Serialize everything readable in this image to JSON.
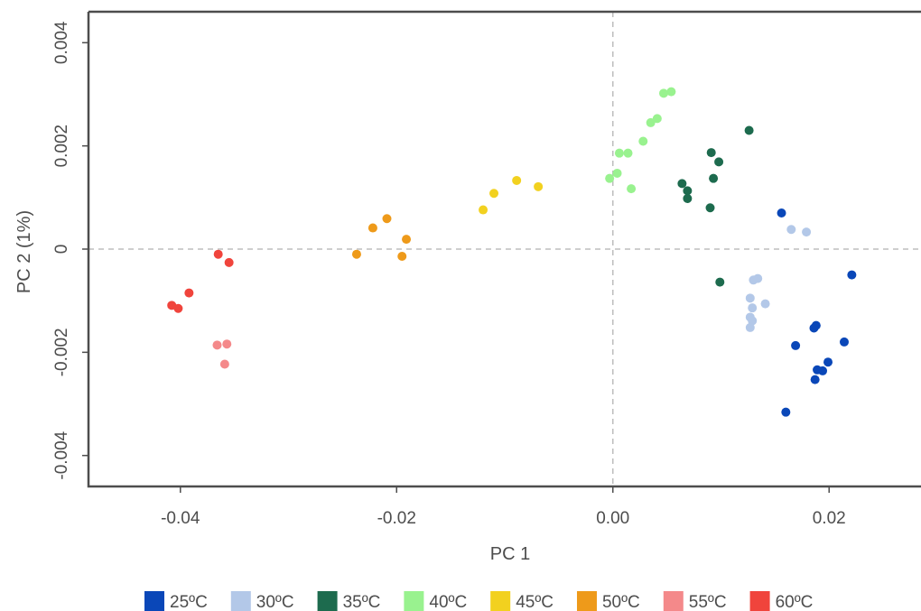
{
  "chart_data": {
    "type": "scatter",
    "xlabel": "PC 1",
    "ylabel": "PC 2 (1%)",
    "xlim": [
      -0.0485,
      0.0285
    ],
    "ylim": [
      -0.0046,
      0.0046
    ],
    "x_ticks": [
      -0.04,
      -0.02,
      0.0,
      0.02
    ],
    "x_tick_labels": [
      "-0.04",
      "-0.02",
      "0.00",
      "0.02"
    ],
    "y_ticks": [
      -0.004,
      -0.002,
      0,
      0.002,
      0.004
    ],
    "y_tick_labels": [
      "-0.004",
      "-0.002",
      "0",
      "0.002",
      "0.004"
    ],
    "reference_lines": {
      "x": 0,
      "y": 0
    },
    "grid": false,
    "legend_position": "bottom",
    "series": [
      {
        "name": "25ºC",
        "color": "#0a47b8",
        "points": [
          [
            0.0156,
            0.0007
          ],
          [
            0.0221,
            -0.0005
          ],
          [
            0.0186,
            -0.00153
          ],
          [
            0.0188,
            -0.00148
          ],
          [
            0.0169,
            -0.00187
          ],
          [
            0.0214,
            -0.0018
          ],
          [
            0.0199,
            -0.00219
          ],
          [
            0.0194,
            -0.00236
          ],
          [
            0.0189,
            -0.00234
          ],
          [
            0.0187,
            -0.00253
          ],
          [
            0.016,
            -0.00316
          ]
        ]
      },
      {
        "name": "30ºC",
        "color": "#b3c8e8",
        "points": [
          [
            0.0165,
            0.00038
          ],
          [
            0.0179,
            0.00033
          ],
          [
            0.0134,
            -0.00057
          ],
          [
            0.013,
            -0.0006
          ],
          [
            0.0127,
            -0.00095
          ],
          [
            0.0141,
            -0.00106
          ],
          [
            0.0129,
            -0.00114
          ],
          [
            0.0127,
            -0.00132
          ],
          [
            0.0129,
            -0.00139
          ],
          [
            0.0127,
            -0.00152
          ]
        ]
      },
      {
        "name": "35ºC",
        "color": "#1d6b4e",
        "points": [
          [
            0.0126,
            0.0023
          ],
          [
            0.0091,
            0.00187
          ],
          [
            0.0098,
            0.00169
          ],
          [
            0.0093,
            0.00137
          ],
          [
            0.0064,
            0.00127
          ],
          [
            0.0069,
            0.00113
          ],
          [
            0.0069,
            0.00098
          ],
          [
            0.009,
            0.0008
          ],
          [
            0.0099,
            -0.00064
          ]
        ]
      },
      {
        "name": "40ºC",
        "color": "#99f28f",
        "points": [
          [
            0.0054,
            0.00305
          ],
          [
            0.0047,
            0.00302
          ],
          [
            0.0041,
            0.00253
          ],
          [
            0.0035,
            0.00245
          ],
          [
            0.0028,
            0.00209
          ],
          [
            0.0006,
            0.00186
          ],
          [
            0.0014,
            0.00186
          ],
          [
            0.0004,
            0.00147
          ],
          [
            -0.0003,
            0.00137
          ],
          [
            0.0017,
            0.00117
          ]
        ]
      },
      {
        "name": "45ºC",
        "color": "#f2d11f",
        "points": [
          [
            -0.0089,
            0.00133
          ],
          [
            -0.0069,
            0.00121
          ],
          [
            -0.011,
            0.00108
          ],
          [
            -0.012,
            0.00076
          ]
        ]
      },
      {
        "name": "50ºC",
        "color": "#ee9a1a",
        "points": [
          [
            -0.0209,
            0.00059
          ],
          [
            -0.0222,
            0.00041
          ],
          [
            -0.0191,
            0.00019
          ],
          [
            -0.0237,
            -0.0001
          ],
          [
            -0.0195,
            -0.00014
          ]
        ]
      },
      {
        "name": "55ºC",
        "color": "#f4898a",
        "points": [
          [
            -0.0357,
            -0.00184
          ],
          [
            -0.0366,
            -0.00186
          ],
          [
            -0.0359,
            -0.00223
          ]
        ]
      },
      {
        "name": "60ºC",
        "color": "#f0443c",
        "points": [
          [
            -0.0365,
            -0.0001
          ],
          [
            -0.0355,
            -0.00026
          ],
          [
            -0.0392,
            -0.00085
          ],
          [
            -0.0408,
            -0.00109
          ],
          [
            -0.0402,
            -0.00115
          ]
        ]
      }
    ]
  }
}
